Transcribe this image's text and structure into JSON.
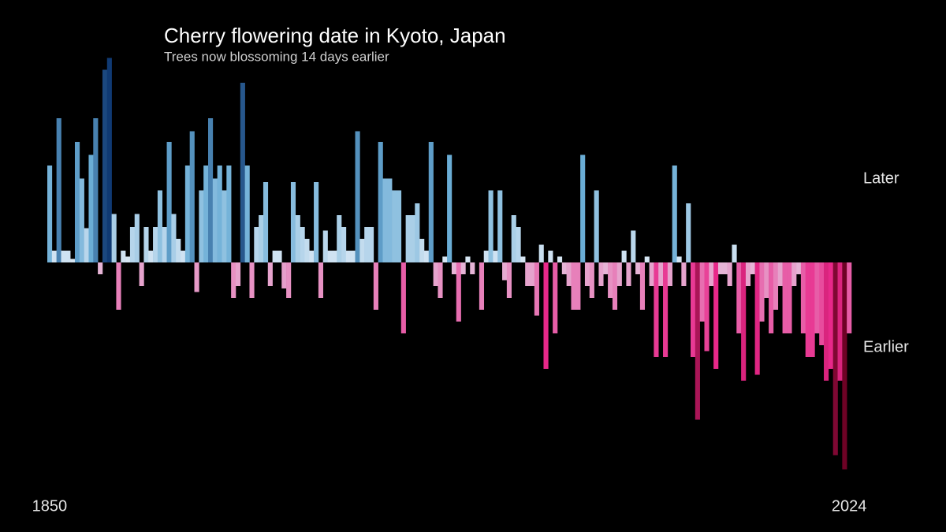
{
  "chart_data": {
    "type": "bar",
    "title": "Cherry flowering date in Kyoto, Japan",
    "subtitle": "Trees now blossoming 14 days earlier",
    "annotations": [
      "Later",
      "Earlier"
    ],
    "x": [
      1850,
      1851,
      1852,
      1853,
      1854,
      1855,
      1856,
      1857,
      1858,
      1859,
      1860,
      1861,
      1862,
      1863,
      1864,
      1865,
      1866,
      1867,
      1868,
      1869,
      1870,
      1871,
      1872,
      1873,
      1874,
      1875,
      1876,
      1877,
      1878,
      1879,
      1880,
      1881,
      1882,
      1883,
      1884,
      1885,
      1886,
      1887,
      1888,
      1889,
      1890,
      1891,
      1892,
      1893,
      1894,
      1895,
      1896,
      1897,
      1898,
      1899,
      1900,
      1901,
      1902,
      1903,
      1904,
      1905,
      1906,
      1907,
      1908,
      1909,
      1910,
      1911,
      1912,
      1913,
      1914,
      1915,
      1916,
      1917,
      1918,
      1919,
      1920,
      1921,
      1922,
      1923,
      1924,
      1925,
      1926,
      1927,
      1928,
      1929,
      1930,
      1931,
      1932,
      1933,
      1934,
      1935,
      1936,
      1937,
      1938,
      1939,
      1940,
      1941,
      1942,
      1943,
      1944,
      1945,
      1946,
      1947,
      1948,
      1949,
      1950,
      1951,
      1952,
      1953,
      1954,
      1955,
      1956,
      1957,
      1958,
      1959,
      1960,
      1961,
      1962,
      1963,
      1964,
      1965,
      1966,
      1967,
      1968,
      1969,
      1970,
      1971,
      1972,
      1973,
      1974,
      1975,
      1976,
      1977,
      1978,
      1979,
      1980,
      1981,
      1982,
      1983,
      1984,
      1985,
      1986,
      1987,
      1988,
      1989,
      1990,
      1991,
      1992,
      1993,
      1994,
      1995,
      1996,
      1997,
      1998,
      1999,
      2000,
      2001,
      2002,
      2003,
      2004,
      2005,
      2006,
      2007,
      2008,
      2009,
      2010,
      2011,
      2012,
      2013,
      2014,
      2015,
      2016,
      2017,
      2018,
      2019,
      2020,
      2021,
      2022,
      2023,
      2024
    ],
    "values": [
      8.2,
      1,
      12.2,
      1,
      1,
      0.3,
      10.2,
      7.1,
      2.9,
      9.1,
      12.2,
      -1,
      16.3,
      17.3,
      4.1,
      -4,
      1,
      0.5,
      3,
      4.1,
      -2,
      3,
      1,
      3,
      6.1,
      3,
      10.2,
      4.1,
      2,
      1,
      8.2,
      11.1,
      -2.5,
      6.1,
      8.2,
      12.2,
      7.1,
      8.2,
      6.1,
      8.2,
      -3,
      -2,
      15.2,
      8.2,
      -3,
      3,
      4,
      6.8,
      -2,
      1,
      1,
      -2.2,
      -3,
      6.8,
      4,
      3,
      2,
      1,
      6.8,
      -3,
      2.7,
      1,
      1,
      4,
      3,
      1,
      1,
      11.1,
      2,
      3,
      3,
      -4,
      10.2,
      7.1,
      7.1,
      6.1,
      6.1,
      -6,
      4,
      4,
      5,
      2,
      1,
      10.2,
      -2,
      -3,
      0.5,
      9.1,
      -1,
      -5,
      -1,
      0.5,
      -1,
      0,
      -4,
      1,
      6.1,
      1,
      6.1,
      -1.5,
      -3,
      4,
      3,
      0.5,
      -2,
      -2,
      -4.5,
      1.5,
      -9,
      1,
      -6,
      0.5,
      -1,
      -2,
      -4,
      -4,
      9.1,
      -2,
      -3,
      6.1,
      -2,
      -1,
      -3,
      -4,
      -2,
      1,
      -2,
      2.7,
      -1,
      -4,
      0.5,
      -2,
      -8,
      -2,
      -8,
      -2,
      8.2,
      0.5,
      -2,
      5,
      -8,
      -13.3,
      -5,
      -7.5,
      -2,
      -9,
      -1,
      -1,
      -2,
      1.5,
      -6,
      -10,
      -2,
      -1,
      -9.5,
      -5,
      -3,
      -6,
      -4,
      -2,
      -6,
      -6,
      -2,
      -1,
      -6,
      -8,
      -8,
      -6,
      -7,
      -10,
      -9,
      -16.3,
      -10,
      -17.5,
      -6
    ],
    "xlim": [
      1849.5,
      2024.5
    ],
    "xticks": [
      1850,
      2024
    ],
    "ylim": [
      -18,
      18
    ],
    "colors": {
      "later": [
        "#dce9f5",
        "#6baed6",
        "#08306b"
      ],
      "earlier": [
        "#e6c6e0",
        "#e8288a",
        "#67001f"
      ]
    }
  }
}
